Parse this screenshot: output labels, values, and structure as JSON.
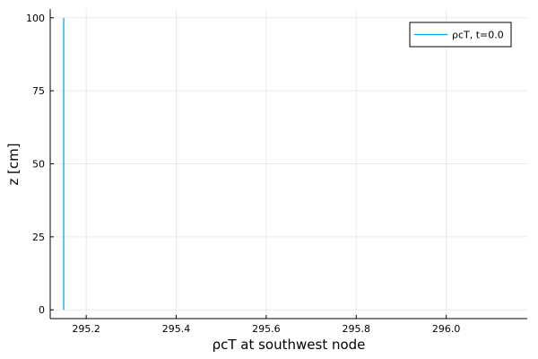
{
  "chart_data": {
    "type": "line",
    "xlabel": "ρcT at southwest node",
    "ylabel": "z [cm]",
    "xlim": [
      295.12,
      296.18
    ],
    "ylim": [
      -3,
      103
    ],
    "xticks": [
      295.2,
      295.4,
      295.6,
      295.8,
      296.0
    ],
    "xtick_labels": [
      "295.2",
      "295.4",
      "295.6",
      "295.8",
      "296.0"
    ],
    "yticks": [
      0,
      25,
      50,
      75,
      100
    ],
    "ytick_labels": [
      "0",
      "25",
      "50",
      "75",
      "100"
    ],
    "grid": true,
    "legend_position": "top-right",
    "series": [
      {
        "name": "ρcT, t=0.0",
        "color": "#009af9",
        "x": [
          295.15,
          295.15
        ],
        "y": [
          0,
          100
        ]
      }
    ]
  }
}
